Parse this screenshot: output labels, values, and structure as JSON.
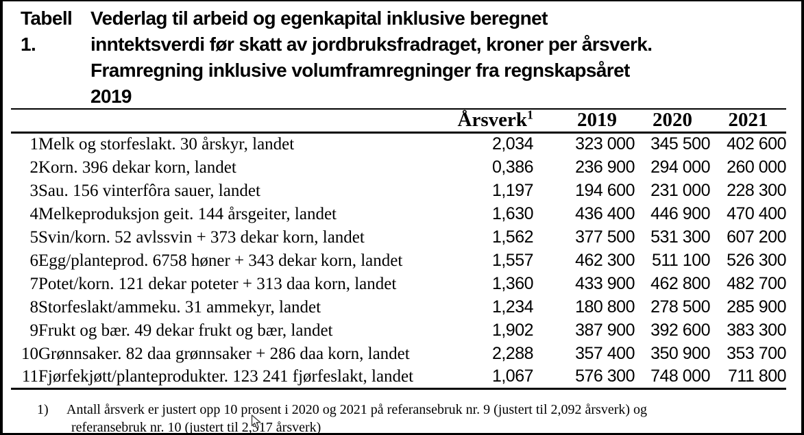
{
  "colors": {
    "text": "#000000",
    "background": "#ffffff",
    "border": "#000000"
  },
  "title": {
    "label": "Tabell 1.",
    "lines": [
      "Vederlag til arbeid og egenkapital inklusive beregnet",
      "inntektsverdi før skatt av jordbruksfradraget, kroner per årsverk.",
      "Framregning inklusive volumframregninger fra regnskapsåret",
      "2019"
    ]
  },
  "table": {
    "columns": {
      "arsverk": "Årsverk",
      "arsverk_sup": "1",
      "y2019": "2019",
      "y2020": "2020",
      "y2021": "2021"
    },
    "rows": [
      {
        "no": "1",
        "desc": "Melk og storfeslakt. 30 årskyr, landet",
        "arsverk": "2,034",
        "y2019": "323 000",
        "y2020": "345 500",
        "y2021": "402 600"
      },
      {
        "no": "2",
        "desc": "Korn. 396 dekar korn, landet",
        "arsverk": "0,386",
        "y2019": "236 900",
        "y2020": "294 000",
        "y2021": "260 000"
      },
      {
        "no": "3",
        "desc": "Sau. 156 vinterfôra sauer, landet",
        "arsverk": "1,197",
        "y2019": "194 600",
        "y2020": "231 000",
        "y2021": "228 300"
      },
      {
        "no": "4",
        "desc": "Melkeproduksjon geit. 144 årsgeiter, landet",
        "arsverk": "1,630",
        "y2019": "436 400",
        "y2020": "446 900",
        "y2021": "470 400"
      },
      {
        "no": "5",
        "desc": "Svin/korn. 52 avlssvin + 373 dekar korn, landet",
        "arsverk": "1,562",
        "y2019": "377 500",
        "y2020": "531 300",
        "y2021": "607 200"
      },
      {
        "no": "6",
        "desc": "Egg/planteprod. 6758 høner + 343 dekar korn, landet",
        "arsverk": "1,557",
        "y2019": "462 300",
        "y2020": "511 100",
        "y2021": "526 300"
      },
      {
        "no": "7",
        "desc": "Potet/korn. 121 dekar poteter + 313 daa korn, landet",
        "arsverk": "1,360",
        "y2019": "433 900",
        "y2020": "462 800",
        "y2021": "482 700"
      },
      {
        "no": "8",
        "desc": "Storfeslakt/ammeku. 31 ammekyr, landet",
        "arsverk": "1,234",
        "y2019": "180 800",
        "y2020": "278 500",
        "y2021": "285 900"
      },
      {
        "no": "9",
        "desc": "Frukt og bær. 49 dekar frukt og bær, landet",
        "arsverk": "1,902",
        "y2019": "387 900",
        "y2020": "392 600",
        "y2021": "383 300"
      },
      {
        "no": "10",
        "desc": "Grønnsaker. 82 daa grønnsaker + 286 daa korn, landet",
        "arsverk": "2,288",
        "y2019": "357 400",
        "y2020": "350 900",
        "y2021": "353 700"
      },
      {
        "no": "11",
        "desc": "Fjørfekjøtt/planteprodukter. 123 241 fjørfeslakt, landet",
        "arsverk": "1,067",
        "y2019": "576 300",
        "y2020": "748 000",
        "y2021": "711 800"
      }
    ]
  },
  "footnote": {
    "marker": "1)",
    "line1": "Antall årsverk er justert opp 10 prosent i 2020 og 2021 på referansebruk nr. 9 (justert til 2,092 årsverk) og",
    "line2": "referansebruk nr. 10 (justert til 2,517 årsverk)"
  }
}
